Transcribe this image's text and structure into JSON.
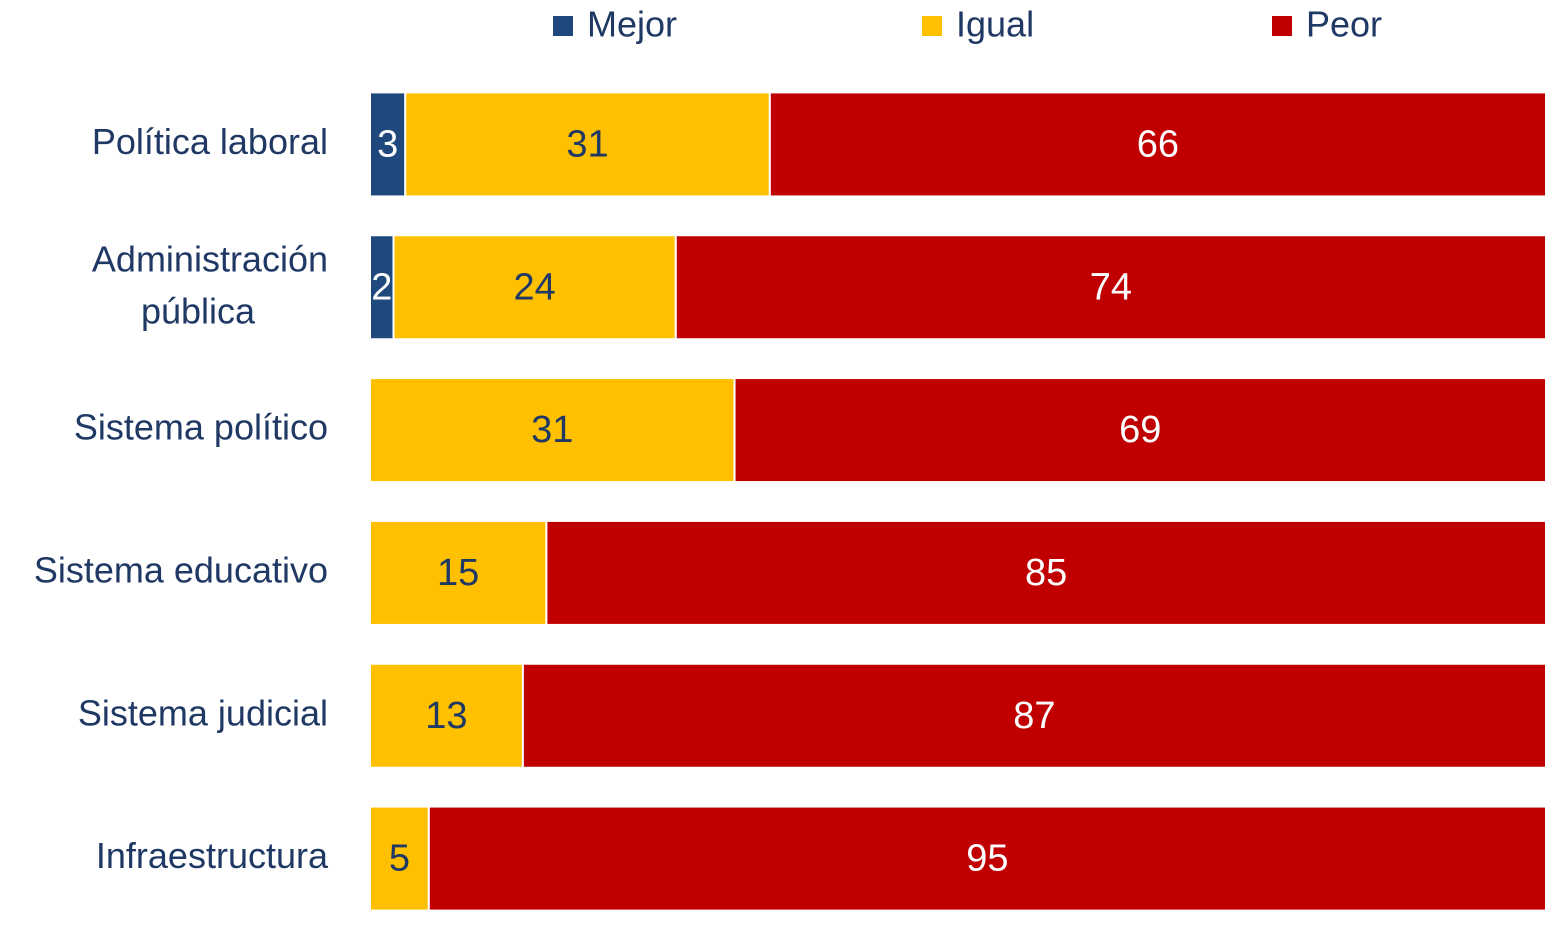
{
  "chart_data": {
    "type": "stacked_barh",
    "categories": [
      "Política laboral",
      "Administración pública",
      "Sistema político",
      "Sistema educativo",
      "Sistema judicial",
      "Infraestructura"
    ],
    "series": [
      {
        "name": "Mejor",
        "color": "#1f497d",
        "label_color": "#ffffff",
        "values": [
          3,
          2,
          0,
          0,
          0,
          0
        ]
      },
      {
        "name": "Igual",
        "color": "#ffc000",
        "label_color": "#1f3864",
        "values": [
          31,
          24,
          31,
          15,
          13,
          5
        ]
      },
      {
        "name": "Peor",
        "color": "#c00000",
        "label_color": "#ffffff",
        "values": [
          66,
          74,
          69,
          85,
          87,
          95
        ]
      }
    ],
    "xlim": [
      0,
      100
    ],
    "legend": "top"
  }
}
